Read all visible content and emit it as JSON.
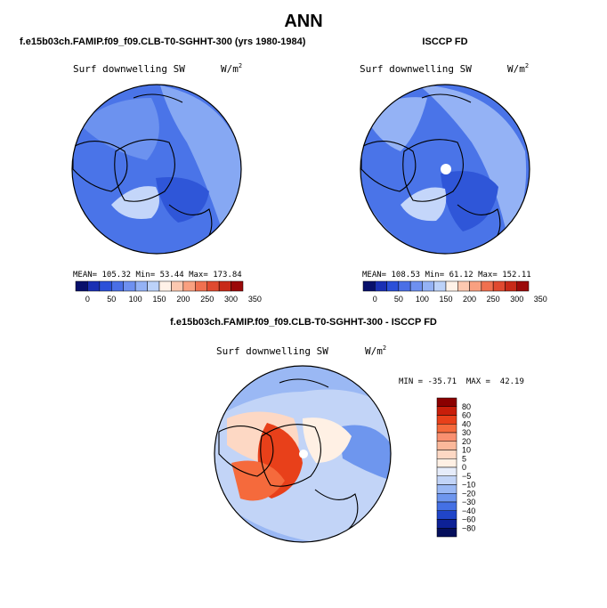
{
  "page": {
    "title": "ANN"
  },
  "chart_data": [
    {
      "type": "heatmap",
      "projection": "north-polar-stereographic",
      "case_title": "f.e15b03ch.FAMIP.f09_f09.CLB-T0-SGHHT-300 (yrs 1980-1984)",
      "variable": "Surf downwelling SW",
      "units_base": "W/m",
      "units_exp": "2",
      "stats": {
        "mean_label": "MEAN=",
        "mean": "105.32",
        "min_label": "Min=",
        "min": "53.44",
        "max_label": "Max=",
        "max": "173.84"
      },
      "colorbar_ticks": [
        "0",
        "50",
        "100",
        "150",
        "200",
        "250",
        "300",
        "350"
      ],
      "colorbar_colors": [
        "#08106b",
        "#1a30b4",
        "#2b50d8",
        "#4a6fe6",
        "#6e90f0",
        "#94b2f5",
        "#bcd2f9",
        "#fff2e8",
        "#fcc8b0",
        "#f9a080",
        "#f07050",
        "#e04a30",
        "#c82a18",
        "#9b0a0a"
      ],
      "field_mean_level": 105.32
    },
    {
      "type": "heatmap",
      "projection": "north-polar-stereographic",
      "case_title": "ISCCP FD",
      "variable": "Surf downwelling SW",
      "units_base": "W/m",
      "units_exp": "2",
      "stats": {
        "mean_label": "MEAN=",
        "mean": "108.53",
        "min_label": "Min=",
        "min": "61.12",
        "max_label": "Max=",
        "max": "152.11"
      },
      "colorbar_ticks": [
        "0",
        "50",
        "100",
        "150",
        "200",
        "250",
        "300",
        "350"
      ],
      "colorbar_colors": [
        "#08106b",
        "#1a30b4",
        "#2b50d8",
        "#4a6fe6",
        "#6e90f0",
        "#94b2f5",
        "#bcd2f9",
        "#fff2e8",
        "#fcc8b0",
        "#f9a080",
        "#f07050",
        "#e04a30",
        "#c82a18",
        "#9b0a0a"
      ],
      "field_mean_level": 108.53
    },
    {
      "type": "heatmap",
      "projection": "north-polar-stereographic",
      "case_title": "f.e15b03ch.FAMIP.f09_f09.CLB-T0-SGHHT-300 - ISCCP FD",
      "variable": "Surf downwelling SW",
      "units_base": "W/m",
      "units_exp": "2",
      "stats_text": "MIN = -35.71  MAX =  42.19",
      "stats": {
        "min": -35.71,
        "max": 42.19
      },
      "colorbar_levels": [
        "80",
        "60",
        "40",
        "30",
        "20",
        "10",
        "5",
        "0",
        "−5",
        "−10",
        "−20",
        "−30",
        "−40",
        "−60",
        "−80"
      ],
      "colorbar_colors": [
        "#8b0000",
        "#c81e0a",
        "#e8401a",
        "#f56a3c",
        "#f99070",
        "#fbb89a",
        "#fdd8c4",
        "#fff0e4",
        "#e6ecfa",
        "#c2d4f7",
        "#9ab8f4",
        "#6e96ee",
        "#4470e4",
        "#2045c8",
        "#0d2196",
        "#050f5c"
      ]
    }
  ]
}
